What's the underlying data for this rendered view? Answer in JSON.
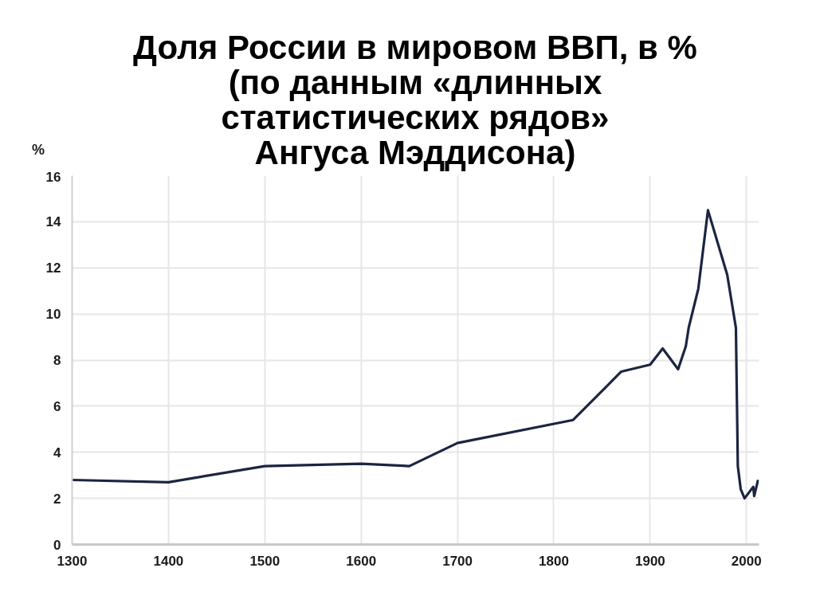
{
  "chart_data": {
    "type": "line",
    "title": "Доля России в мировом ВВП, в %\n(по данным «длинных\nстатистических рядов»\nАнгуса Мэддисона)",
    "ylabel": "%",
    "x": [
      1300,
      1400,
      1500,
      1600,
      1650,
      1700,
      1820,
      1870,
      1900,
      1913,
      1929,
      1937,
      1940,
      1950,
      1960,
      1980,
      1989,
      1991,
      1994,
      1998,
      2007,
      2008,
      2012
    ],
    "series": [
      {
        "color": "#1c2541",
        "values": [
          2.8,
          2.7,
          3.4,
          3.5,
          3.4,
          4.4,
          5.4,
          7.5,
          7.8,
          8.5,
          7.6,
          8.6,
          9.4,
          11.1,
          14.5,
          11.7,
          9.4,
          3.4,
          2.4,
          2.0,
          2.5,
          2.1,
          2.8
        ]
      }
    ],
    "xlim": [
      1300,
      2013
    ],
    "ylim": [
      0,
      16
    ],
    "xticks": [
      1300,
      1400,
      1500,
      1600,
      1700,
      1800,
      1900,
      2000
    ],
    "yticks": [
      0,
      2,
      4,
      6,
      8,
      10,
      12,
      14,
      16
    ],
    "grid": true,
    "line_style": "solid"
  }
}
